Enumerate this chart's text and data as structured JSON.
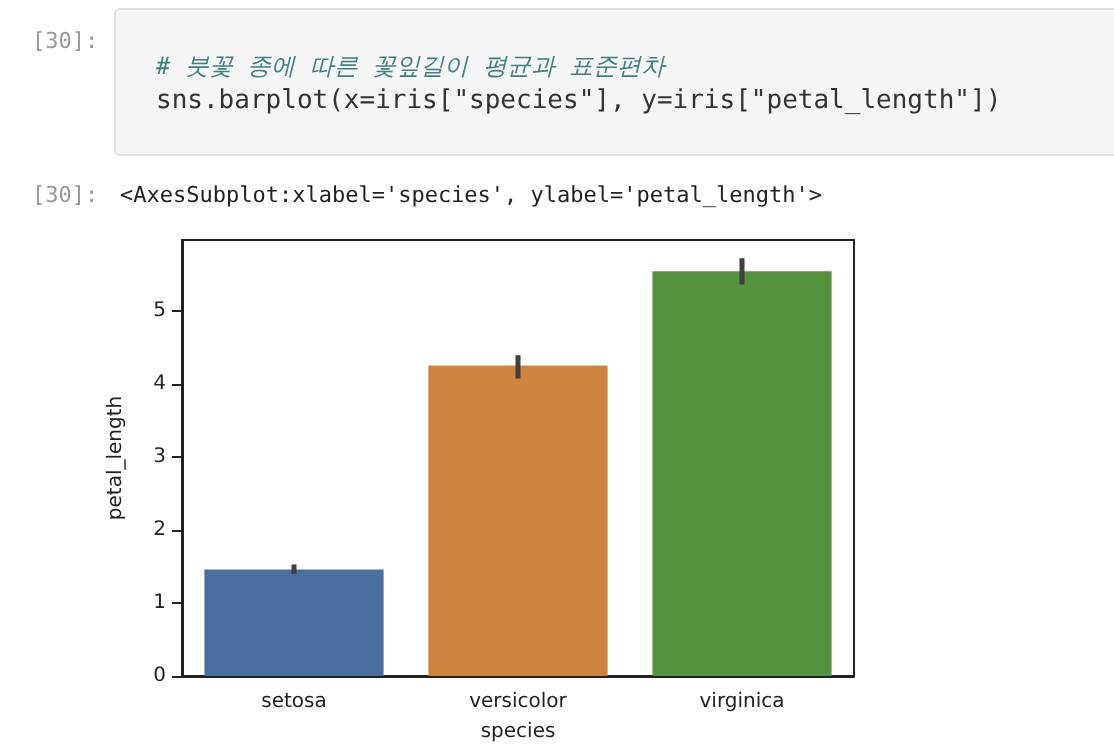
{
  "chart_data": {
    "type": "bar",
    "annotations": [
      "[30]:",
      "# 붓꽃 종에 따른 꽃잎길이 평균과 표준편차",
      "sns.barplot(x=iris[\"species\"], y=iris[\"petal_length\"])",
      "[30]:",
      "<AxesSubplot:xlabel='species', ylabel='petal_length'>"
    ],
    "categories": [
      "setosa",
      "versicolor",
      "virginica"
    ],
    "values": [
      1.46,
      4.26,
      5.55
    ],
    "colors": [
      "#4a6f9e",
      "#cd843f",
      "#55923f"
    ],
    "errors": [
      [
        1.4,
        1.53
      ],
      [
        4.08,
        4.4
      ],
      [
        5.37,
        5.73
      ]
    ],
    "xlabel": "species",
    "ylabel": "petal_length",
    "ylim": [
      0,
      5.98
    ],
    "yticks": [
      0,
      1,
      2,
      3,
      4,
      5
    ]
  }
}
